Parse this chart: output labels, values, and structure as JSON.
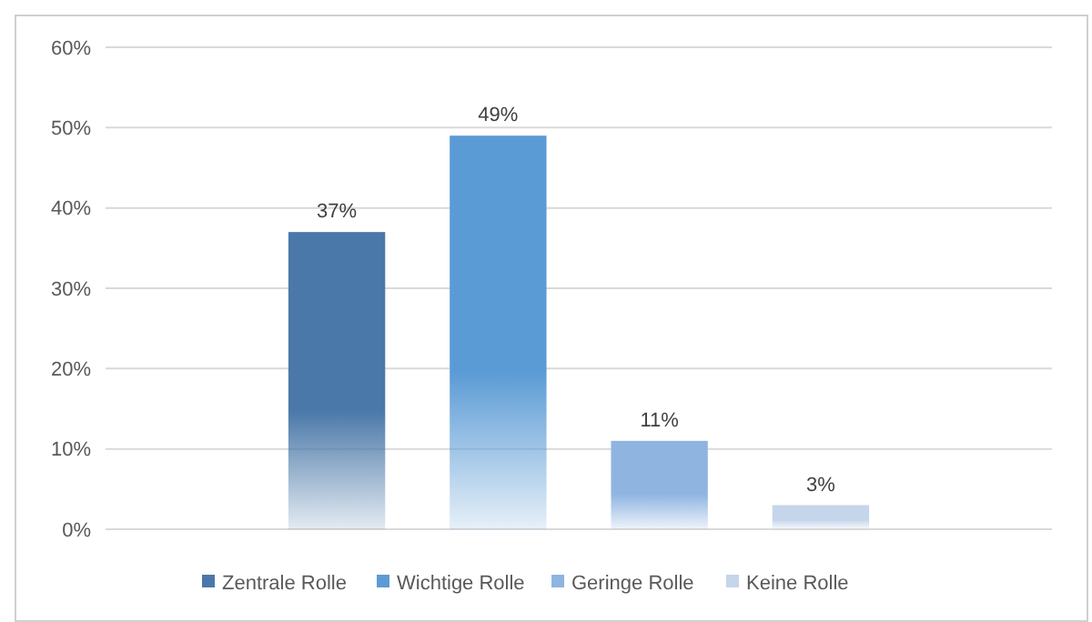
{
  "chart_data": {
    "type": "bar",
    "categories": [
      null
    ],
    "series": [
      {
        "name": "Zentrale Rolle",
        "color": "#4a78a8",
        "values": [
          37
        ]
      },
      {
        "name": "Wichtige Rolle",
        "color": "#5b9bd5",
        "values": [
          49
        ]
      },
      {
        "name": "Geringe Rolle",
        "color": "#8fb4e0",
        "values": [
          11
        ]
      },
      {
        "name": "Keine Rolle",
        "color": "#c5d5ea",
        "values": [
          3
        ]
      }
    ],
    "ylim": [
      0,
      60
    ],
    "yticks": [
      {
        "value": 0,
        "label": "0%"
      },
      {
        "value": 10,
        "label": "10%"
      },
      {
        "value": 20,
        "label": "20%"
      },
      {
        "value": 30,
        "label": "30%"
      },
      {
        "value": 40,
        "label": "40%"
      },
      {
        "value": 50,
        "label": "50%"
      },
      {
        "value": 60,
        "label": "60%"
      }
    ],
    "value_labels": [
      [
        "37%"
      ],
      [
        "49%"
      ],
      [
        "11%"
      ],
      [
        "3%"
      ]
    ],
    "grid": "y",
    "legend": "bottom"
  }
}
